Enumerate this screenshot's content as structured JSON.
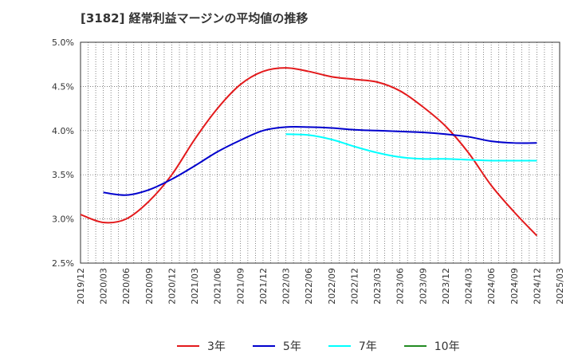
{
  "chart_data": {
    "type": "line",
    "title": "[3182]  経常利益マージンの平均値の推移",
    "xlabel": "",
    "ylabel": "",
    "y_tick_labels": [
      "2.5%",
      "3.0%",
      "3.5%",
      "4.0%",
      "4.5%",
      "5.0%"
    ],
    "y_ticks": [
      2.5,
      3.0,
      3.5,
      4.0,
      4.5,
      5.0
    ],
    "ylim": [
      2.5,
      5.0
    ],
    "x_tick_labels": [
      "2019/12",
      "2020/03",
      "2020/06",
      "2020/09",
      "2020/12",
      "2021/03",
      "2021/06",
      "2021/09",
      "2021/12",
      "2022/03",
      "2022/06",
      "2022/09",
      "2022/12",
      "2023/03",
      "2023/06",
      "2023/09",
      "2023/12",
      "2024/03",
      "2024/06",
      "2024/09",
      "2024/12",
      "2025/03"
    ],
    "grid": true,
    "legend_position": "bottom",
    "series": [
      {
        "name": "3年",
        "color": "#e31a1c",
        "values": [
          3.05,
          2.96,
          3.0,
          3.2,
          3.5,
          3.9,
          4.25,
          4.52,
          4.67,
          4.71,
          4.67,
          4.61,
          4.58,
          4.55,
          4.45,
          4.27,
          4.05,
          3.75,
          3.38,
          3.08,
          2.81,
          null
        ]
      },
      {
        "name": "5年",
        "color": "#0000cd",
        "values": [
          null,
          3.3,
          3.27,
          3.33,
          3.45,
          3.6,
          3.76,
          3.89,
          4.0,
          4.04,
          4.04,
          4.03,
          4.01,
          4.0,
          3.99,
          3.98,
          3.96,
          3.93,
          3.88,
          3.86,
          3.86,
          null
        ]
      },
      {
        "name": "7年",
        "color": "#00ffff",
        "values": [
          null,
          null,
          null,
          null,
          null,
          null,
          null,
          null,
          null,
          3.96,
          3.95,
          3.9,
          3.82,
          3.75,
          3.7,
          3.68,
          3.68,
          3.67,
          3.66,
          3.66,
          3.66,
          null
        ]
      },
      {
        "name": "10年",
        "color": "#228b22",
        "values": [
          null,
          null,
          null,
          null,
          null,
          null,
          null,
          null,
          null,
          null,
          null,
          null,
          null,
          null,
          null,
          null,
          null,
          null,
          null,
          null,
          null,
          null
        ]
      }
    ]
  }
}
